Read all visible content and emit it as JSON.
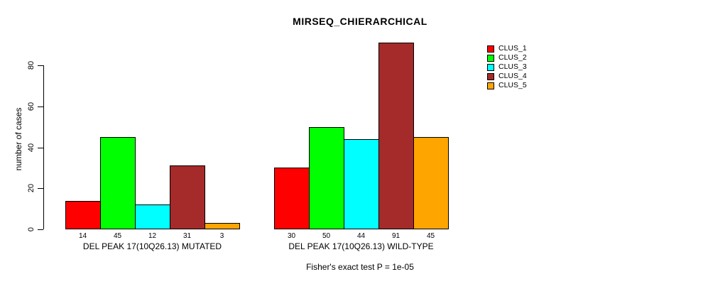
{
  "title": "MIRSEQ_CHIERARCHICAL",
  "caption": "Fisher's exact test P = 1e-05",
  "y_axis": {
    "label": "number of cases",
    "ticks": [
      0,
      20,
      40,
      60,
      80
    ]
  },
  "legend": {
    "entries": [
      {
        "label": "CLUS_1",
        "color": "#FF0000"
      },
      {
        "label": "CLUS_2",
        "color": "#00FF00"
      },
      {
        "label": "CLUS_3",
        "color": "#00FFFF"
      },
      {
        "label": "CLUS_4",
        "color": "#A52A2A"
      },
      {
        "label": "CLUS_5",
        "color": "#FFA500"
      }
    ]
  },
  "chart_data": {
    "type": "bar",
    "title": "MIRSEQ_CHIERARCHICAL",
    "ylabel": "number of cases",
    "xlabel": "",
    "ylim": [
      0,
      80
    ],
    "y_ticks": [
      0,
      20,
      40,
      60,
      80
    ],
    "grid": false,
    "legend_position": "right",
    "series_labels": [
      "CLUS_1",
      "CLUS_2",
      "CLUS_3",
      "CLUS_4",
      "CLUS_5"
    ],
    "series_colors": [
      "#FF0000",
      "#00FF00",
      "#00FFFF",
      "#A52A2A",
      "#FFA500"
    ],
    "groups": [
      {
        "label": "DEL PEAK 17(10Q26.13) MUTATED",
        "values": [
          14,
          45,
          12,
          31,
          3
        ]
      },
      {
        "label": "DEL PEAK 17(10Q26.13) WILD-TYPE",
        "values": [
          30,
          50,
          44,
          91,
          45
        ]
      }
    ],
    "annotation": "Fisher's exact test P = 1e-05"
  }
}
